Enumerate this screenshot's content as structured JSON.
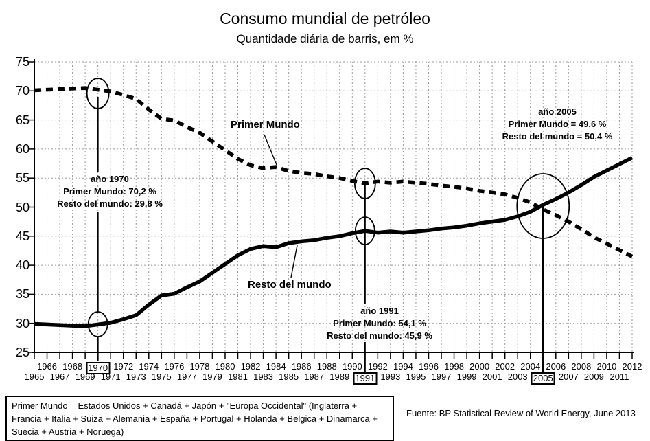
{
  "title": "Consumo mundial de petróleo",
  "subtitle": "Quantidade diária de barris, em %",
  "chart_data": {
    "type": "line",
    "title": "Consumo mundial de petróleo",
    "subtitle": "Quantidade diária de barris, em %",
    "ylim": [
      25,
      75
    ],
    "yticks": [
      25,
      30,
      35,
      40,
      45,
      50,
      55,
      60,
      65,
      70,
      75
    ],
    "grid": true,
    "x": [
      1965,
      1966,
      1967,
      1968,
      1969,
      1970,
      1971,
      1972,
      1973,
      1974,
      1975,
      1976,
      1977,
      1978,
      1979,
      1980,
      1981,
      1982,
      1983,
      1984,
      1985,
      1986,
      1987,
      1988,
      1989,
      1990,
      1991,
      1992,
      1993,
      1994,
      1995,
      1996,
      1997,
      1998,
      1999,
      2000,
      2001,
      2002,
      2003,
      2004,
      2005,
      2006,
      2007,
      2008,
      2009,
      2010,
      2011,
      2012
    ],
    "series": [
      {
        "name": "Primer Mundo",
        "style": "dashed",
        "values": [
          70.1,
          70.2,
          70.3,
          70.4,
          70.5,
          70.2,
          69.9,
          69.3,
          68.6,
          66.8,
          65.2,
          64.9,
          63.8,
          62.8,
          61.3,
          59.8,
          58.3,
          57.2,
          56.7,
          56.9,
          56.2,
          55.9,
          55.7,
          55.3,
          55.0,
          54.5,
          54.1,
          54.4,
          54.2,
          54.4,
          54.2,
          54.0,
          53.7,
          53.5,
          53.2,
          52.8,
          52.5,
          52.2,
          51.6,
          50.8,
          49.6,
          48.6,
          47.5,
          46.2,
          44.8,
          43.7,
          42.6,
          41.5
        ]
      },
      {
        "name": "Resto del mundo",
        "style": "solid",
        "values": [
          29.9,
          29.8,
          29.7,
          29.6,
          29.5,
          29.8,
          30.1,
          30.7,
          31.4,
          33.2,
          34.8,
          35.1,
          36.2,
          37.2,
          38.7,
          40.2,
          41.7,
          42.8,
          43.3,
          43.1,
          43.8,
          44.1,
          44.3,
          44.7,
          45.0,
          45.5,
          45.9,
          45.6,
          45.8,
          45.6,
          45.8,
          46.0,
          46.3,
          46.5,
          46.8,
          47.2,
          47.5,
          47.8,
          48.4,
          49.2,
          50.4,
          51.4,
          52.5,
          53.8,
          55.2,
          56.3,
          57.4,
          58.5
        ]
      }
    ],
    "highlighted_years": [
      1970,
      1991,
      2005
    ],
    "annotations": [
      {
        "year": 1970,
        "title": "año 1970",
        "detail1": "Primer Mundo: 70,2 %",
        "detail2": "Resto del mundo: 29,8 %"
      },
      {
        "year": 1991,
        "title": "año 1991",
        "detail1": "Primer Mundo: 54,1 %",
        "detail2": "Resto del mundo: 45,9 %"
      },
      {
        "year": 2005,
        "title": "año 2005",
        "detail1": "Primer Mundo = 49,6 %",
        "detail2": "Resto del mundo = 50,4 %"
      }
    ],
    "line_color": "#000000",
    "grid_color": "#999999"
  },
  "footer": {
    "lines": [
      "Primer Mundo = Estados Unidos + Canadá + Japón + \"Europa Occidental\" (Inglaterra +",
      "Francia + Italia + Suiza + Alemania + España + Portugal + Holanda + Belgica + Dinamarca +",
      "Suecia + Austria + Noruega)"
    ],
    "source": "Fuente: BP Statistical Review of World Energy, June 2013"
  }
}
